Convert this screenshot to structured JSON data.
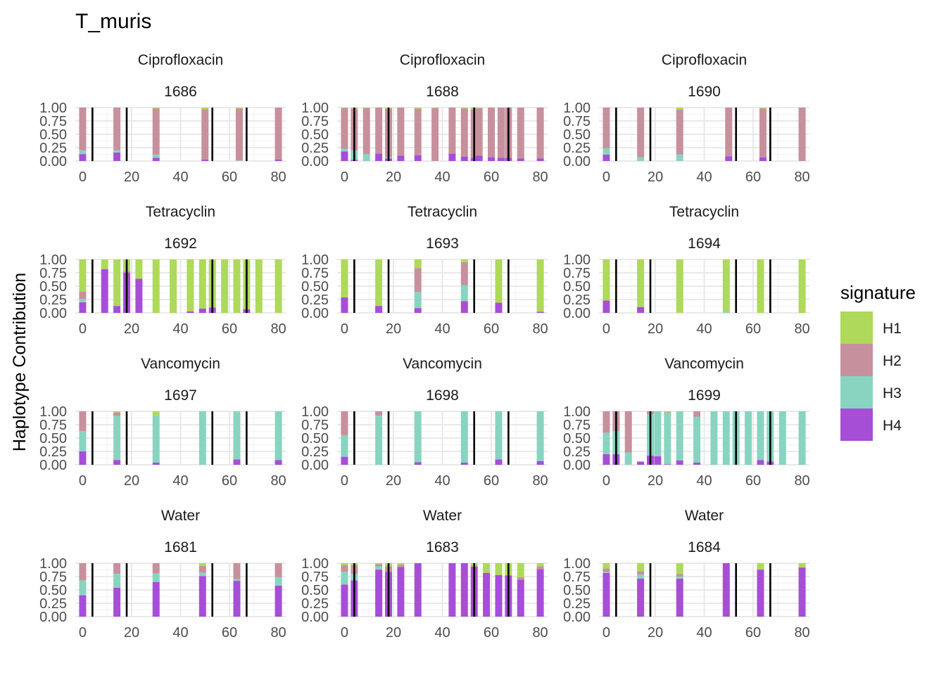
{
  "chart_data": {
    "type": "bar",
    "stacked": true,
    "title": "T_muris",
    "ylabel": "Haplotype Contribution",
    "xlabel": "",
    "xlim": [
      -3,
      83
    ],
    "ylim": [
      0,
      1
    ],
    "x_ticks": [
      0,
      20,
      40,
      60,
      80
    ],
    "y_ticks": [
      "0.00",
      "0.25",
      "0.50",
      "0.75",
      "1.00"
    ],
    "y_tick_values": [
      0,
      0.25,
      0.5,
      0.75,
      1
    ],
    "grid": true,
    "legend": {
      "title": "signature",
      "position": "right",
      "entries": [
        {
          "name": "H1",
          "color": "#AED95A"
        },
        {
          "name": "H2",
          "color": "#C7909D"
        },
        {
          "name": "H3",
          "color": "#88D4C0"
        },
        {
          "name": "H4",
          "color": "#A64FD6"
        }
      ]
    },
    "stack_order": [
      "H4",
      "H3",
      "H2",
      "H1"
    ],
    "treatment_lines_x": [
      4,
      18,
      53,
      67
    ],
    "panels": [
      {
        "treatment": "Ciprofloxacin",
        "mouse": "1686",
        "bars": [
          {
            "x": 0,
            "H4": 0.13,
            "H3": 0.07,
            "H2": 0.8,
            "H1": 0.0
          },
          {
            "x": 14,
            "H4": 0.16,
            "H3": 0.04,
            "H2": 0.8,
            "H1": 0.0
          },
          {
            "x": 30,
            "H4": 0.06,
            "H3": 0.06,
            "H2": 0.86,
            "H1": 0.02
          },
          {
            "x": 50,
            "H4": 0.03,
            "H3": 0.0,
            "H2": 0.94,
            "H1": 0.03
          },
          {
            "x": 64,
            "H4": 0.0,
            "H3": 0.01,
            "H2": 0.97,
            "H1": 0.02
          },
          {
            "x": 80,
            "H4": 0.03,
            "H3": 0.0,
            "H2": 0.97,
            "H1": 0.0
          }
        ]
      },
      {
        "treatment": "Ciprofloxacin",
        "mouse": "1688",
        "bars": [
          {
            "x": 0,
            "H4": 0.18,
            "H3": 0.05,
            "H2": 0.76,
            "H1": 0.01
          },
          {
            "x": 4,
            "H4": 0.02,
            "H3": 0.18,
            "H2": 0.78,
            "H1": 0.02
          },
          {
            "x": 9,
            "H4": 0.0,
            "H3": 0.13,
            "H2": 0.86,
            "H1": 0.01
          },
          {
            "x": 14,
            "H4": 0.14,
            "H3": 0.0,
            "H2": 0.86,
            "H1": 0.0
          },
          {
            "x": 18,
            "H4": 0.05,
            "H3": 0.02,
            "H2": 0.91,
            "H1": 0.02
          },
          {
            "x": 23,
            "H4": 0.1,
            "H3": 0.0,
            "H2": 0.9,
            "H1": 0.0
          },
          {
            "x": 30,
            "H4": 0.11,
            "H3": 0.0,
            "H2": 0.87,
            "H1": 0.02
          },
          {
            "x": 37,
            "H4": 0.0,
            "H3": 0.0,
            "H2": 0.99,
            "H1": 0.01
          },
          {
            "x": 44,
            "H4": 0.14,
            "H3": 0.0,
            "H2": 0.86,
            "H1": 0.0
          },
          {
            "x": 49,
            "H4": 0.08,
            "H3": 0.0,
            "H2": 0.9,
            "H1": 0.02
          },
          {
            "x": 53,
            "H4": 0.06,
            "H3": 0.0,
            "H2": 0.91,
            "H1": 0.03
          },
          {
            "x": 55,
            "H4": 0.1,
            "H3": 0.0,
            "H2": 0.89,
            "H1": 0.01
          },
          {
            "x": 60,
            "H4": 0.07,
            "H3": 0.0,
            "H2": 0.93,
            "H1": 0.0
          },
          {
            "x": 64,
            "H4": 0.06,
            "H3": 0.0,
            "H2": 0.94,
            "H1": 0.0
          },
          {
            "x": 67,
            "H4": 0.06,
            "H3": 0.0,
            "H2": 0.94,
            "H1": 0.0
          },
          {
            "x": 72,
            "H4": 0.05,
            "H3": 0.0,
            "H2": 0.95,
            "H1": 0.0
          },
          {
            "x": 80,
            "H4": 0.05,
            "H3": 0.0,
            "H2": 0.95,
            "H1": 0.0
          }
        ]
      },
      {
        "treatment": "Ciprofloxacin",
        "mouse": "1690",
        "bars": [
          {
            "x": 0,
            "H4": 0.12,
            "H3": 0.12,
            "H2": 0.76,
            "H1": 0.0
          },
          {
            "x": 14,
            "H4": 0.0,
            "H3": 0.07,
            "H2": 0.93,
            "H1": 0.0
          },
          {
            "x": 30,
            "H4": 0.0,
            "H3": 0.12,
            "H2": 0.84,
            "H1": 0.04
          },
          {
            "x": 50,
            "H4": 0.09,
            "H3": 0.0,
            "H2": 0.91,
            "H1": 0.0
          },
          {
            "x": 64,
            "H4": 0.07,
            "H3": 0.0,
            "H2": 0.91,
            "H1": 0.02
          },
          {
            "x": 80,
            "H4": 0.0,
            "H3": 0.0,
            "H2": 1.0,
            "H1": 0.0
          }
        ]
      },
      {
        "treatment": "Tetracyclin",
        "mouse": "1692",
        "bars": [
          {
            "x": 0,
            "H4": 0.2,
            "H3": 0.06,
            "H2": 0.14,
            "H1": 0.6
          },
          {
            "x": 9,
            "H4": 0.82,
            "H3": 0.0,
            "H2": 0.0,
            "H1": 0.18
          },
          {
            "x": 14,
            "H4": 0.13,
            "H3": 0.0,
            "H2": 0.0,
            "H1": 0.87
          },
          {
            "x": 18,
            "H4": 0.75,
            "H3": 0.0,
            "H2": 0.03,
            "H1": 0.22
          },
          {
            "x": 23,
            "H4": 0.64,
            "H3": 0.0,
            "H2": 0.0,
            "H1": 0.36
          },
          {
            "x": 30,
            "H4": 0.0,
            "H3": 0.0,
            "H2": 0.0,
            "H1": 1.0
          },
          {
            "x": 37,
            "H4": 0.0,
            "H3": 0.0,
            "H2": 0.0,
            "H1": 1.0
          },
          {
            "x": 44,
            "H4": 0.03,
            "H3": 0.0,
            "H2": 0.0,
            "H1": 0.97
          },
          {
            "x": 49,
            "H4": 0.08,
            "H3": 0.0,
            "H2": 0.0,
            "H1": 0.92
          },
          {
            "x": 53,
            "H4": 0.1,
            "H3": 0.0,
            "H2": 0.0,
            "H1": 0.9
          },
          {
            "x": 58,
            "H4": 0.0,
            "H3": 0.0,
            "H2": 0.0,
            "H1": 1.0
          },
          {
            "x": 63,
            "H4": 0.0,
            "H3": 0.0,
            "H2": 0.0,
            "H1": 1.0
          },
          {
            "x": 67,
            "H4": 0.07,
            "H3": 0.0,
            "H2": 0.0,
            "H1": 0.93
          },
          {
            "x": 72,
            "H4": 0.0,
            "H3": 0.0,
            "H2": 0.0,
            "H1": 1.0
          },
          {
            "x": 80,
            "H4": 0.0,
            "H3": 0.0,
            "H2": 0.0,
            "H1": 1.0
          }
        ]
      },
      {
        "treatment": "Tetracyclin",
        "mouse": "1693",
        "bars": [
          {
            "x": 0,
            "H4": 0.29,
            "H3": 0.0,
            "H2": 0.0,
            "H1": 0.71
          },
          {
            "x": 14,
            "H4": 0.13,
            "H3": 0.0,
            "H2": 0.0,
            "H1": 0.87
          },
          {
            "x": 30,
            "H4": 0.09,
            "H3": 0.3,
            "H2": 0.45,
            "H1": 0.16
          },
          {
            "x": 49,
            "H4": 0.22,
            "H3": 0.3,
            "H2": 0.43,
            "H1": 0.05
          },
          {
            "x": 63,
            "H4": 0.19,
            "H3": 0.0,
            "H2": 0.0,
            "H1": 0.81
          },
          {
            "x": 80,
            "H4": 0.02,
            "H3": 0.0,
            "H2": 0.0,
            "H1": 0.98
          }
        ]
      },
      {
        "treatment": "Tetracyclin",
        "mouse": "1694",
        "bars": [
          {
            "x": 0,
            "H4": 0.23,
            "H3": 0.0,
            "H2": 0.0,
            "H1": 0.77
          },
          {
            "x": 14,
            "H4": 0.11,
            "H3": 0.0,
            "H2": 0.0,
            "H1": 0.89
          },
          {
            "x": 30,
            "H4": 0.0,
            "H3": 0.0,
            "H2": 0.0,
            "H1": 1.0
          },
          {
            "x": 49,
            "H4": 0.0,
            "H3": 0.02,
            "H2": 0.0,
            "H1": 0.98
          },
          {
            "x": 63,
            "H4": 0.0,
            "H3": 0.0,
            "H2": 0.0,
            "H1": 1.0
          },
          {
            "x": 80,
            "H4": 0.0,
            "H3": 0.0,
            "H2": 0.0,
            "H1": 1.0
          }
        ]
      },
      {
        "treatment": "Vancomycin",
        "mouse": "1697",
        "bars": [
          {
            "x": 0,
            "H4": 0.25,
            "H3": 0.38,
            "H2": 0.37,
            "H1": 0.0
          },
          {
            "x": 14,
            "H4": 0.09,
            "H3": 0.82,
            "H2": 0.07,
            "H1": 0.02
          },
          {
            "x": 30,
            "H4": 0.04,
            "H3": 0.89,
            "H2": 0.0,
            "H1": 0.07
          },
          {
            "x": 49,
            "H4": 0.0,
            "H3": 1.0,
            "H2": 0.0,
            "H1": 0.0
          },
          {
            "x": 63,
            "H4": 0.1,
            "H3": 0.9,
            "H2": 0.0,
            "H1": 0.0
          },
          {
            "x": 80,
            "H4": 0.09,
            "H3": 0.91,
            "H2": 0.0,
            "H1": 0.0
          }
        ]
      },
      {
        "treatment": "Vancomycin",
        "mouse": "1698",
        "bars": [
          {
            "x": 0,
            "H4": 0.15,
            "H3": 0.4,
            "H2": 0.45,
            "H1": 0.0
          },
          {
            "x": 14,
            "H4": 0.0,
            "H3": 0.92,
            "H2": 0.08,
            "H1": 0.0
          },
          {
            "x": 30,
            "H4": 0.05,
            "H3": 0.95,
            "H2": 0.0,
            "H1": 0.0
          },
          {
            "x": 49,
            "H4": 0.04,
            "H3": 0.96,
            "H2": 0.0,
            "H1": 0.0
          },
          {
            "x": 63,
            "H4": 0.1,
            "H3": 0.9,
            "H2": 0.0,
            "H1": 0.0
          },
          {
            "x": 80,
            "H4": 0.07,
            "H3": 0.93,
            "H2": 0.0,
            "H1": 0.0
          }
        ]
      },
      {
        "treatment": "Vancomycin",
        "mouse": "1699",
        "bars": [
          {
            "x": 0,
            "H4": 0.2,
            "H3": 0.4,
            "H2": 0.4,
            "H1": 0.0
          },
          {
            "x": 4,
            "H4": 0.2,
            "H3": 0.43,
            "H2": 0.37,
            "H1": 0.0
          },
          {
            "x": 9,
            "H4": 0.0,
            "H3": 0.23,
            "H2": 0.77,
            "H1": 0.0
          },
          {
            "x": 14,
            "H4": 0.06,
            "H3": 0.0,
            "H2": 0.0,
            "H1": 0.0
          },
          {
            "x": 18,
            "H4": 0.17,
            "H3": 0.78,
            "H2": 0.05,
            "H1": 0.0
          },
          {
            "x": 21,
            "H4": 0.16,
            "H3": 0.84,
            "H2": 0.0,
            "H1": 0.0
          },
          {
            "x": 25,
            "H4": 0.01,
            "H3": 0.96,
            "H2": 0.01,
            "H1": 0.02
          },
          {
            "x": 30,
            "H4": 0.08,
            "H3": 0.92,
            "H2": 0.0,
            "H1": 0.0
          },
          {
            "x": 37,
            "H4": 0.04,
            "H3": 0.86,
            "H2": 0.1,
            "H1": 0.0
          },
          {
            "x": 44,
            "H4": 0.0,
            "H3": 1.0,
            "H2": 0.0,
            "H1": 0.0
          },
          {
            "x": 49,
            "H4": 0.0,
            "H3": 1.0,
            "H2": 0.0,
            "H1": 0.0
          },
          {
            "x": 53,
            "H4": 0.0,
            "H3": 1.0,
            "H2": 0.0,
            "H1": 0.0
          },
          {
            "x": 58,
            "H4": 0.0,
            "H3": 1.0,
            "H2": 0.0,
            "H1": 0.0
          },
          {
            "x": 63,
            "H4": 0.09,
            "H3": 0.91,
            "H2": 0.0,
            "H1": 0.0
          },
          {
            "x": 67,
            "H4": 0.06,
            "H3": 0.94,
            "H2": 0.0,
            "H1": 0.0
          },
          {
            "x": 72,
            "H4": 0.0,
            "H3": 1.0,
            "H2": 0.0,
            "H1": 0.0
          },
          {
            "x": 80,
            "H4": 0.0,
            "H3": 1.0,
            "H2": 0.0,
            "H1": 0.0
          }
        ]
      },
      {
        "treatment": "Water",
        "mouse": "1681",
        "bars": [
          {
            "x": 0,
            "H4": 0.4,
            "H3": 0.28,
            "H2": 0.32,
            "H1": 0.0
          },
          {
            "x": 14,
            "H4": 0.54,
            "H3": 0.26,
            "H2": 0.2,
            "H1": 0.0
          },
          {
            "x": 30,
            "H4": 0.65,
            "H3": 0.16,
            "H2": 0.19,
            "H1": 0.0
          },
          {
            "x": 49,
            "H4": 0.76,
            "H3": 0.06,
            "H2": 0.13,
            "H1": 0.05
          },
          {
            "x": 63,
            "H4": 0.67,
            "H3": 0.03,
            "H2": 0.3,
            "H1": 0.0
          },
          {
            "x": 80,
            "H4": 0.58,
            "H3": 0.16,
            "H2": 0.26,
            "H1": 0.0
          }
        ]
      },
      {
        "treatment": "Water",
        "mouse": "1683",
        "bars": [
          {
            "x": 0,
            "H4": 0.6,
            "H3": 0.24,
            "H2": 0.12,
            "H1": 0.04
          },
          {
            "x": 4,
            "H4": 0.68,
            "H3": 0.12,
            "H2": 0.17,
            "H1": 0.03
          },
          {
            "x": 14,
            "H4": 0.88,
            "H3": 0.06,
            "H2": 0.04,
            "H1": 0.02
          },
          {
            "x": 18,
            "H4": 0.84,
            "H3": 0.0,
            "H2": 0.1,
            "H1": 0.06
          },
          {
            "x": 23,
            "H4": 0.93,
            "H3": 0.0,
            "H2": 0.04,
            "H1": 0.03
          },
          {
            "x": 30,
            "H4": 1.0,
            "H3": 0.0,
            "H2": 0.0,
            "H1": 0.0
          },
          {
            "x": 44,
            "H4": 1.0,
            "H3": 0.0,
            "H2": 0.0,
            "H1": 0.0
          },
          {
            "x": 49,
            "H4": 1.0,
            "H3": 0.0,
            "H2": 0.0,
            "H1": 0.0
          },
          {
            "x": 53,
            "H4": 0.94,
            "H3": 0.0,
            "H2": 0.0,
            "H1": 0.06
          },
          {
            "x": 58,
            "H4": 0.82,
            "H3": 0.0,
            "H2": 0.0,
            "H1": 0.18
          },
          {
            "x": 63,
            "H4": 0.78,
            "H3": 0.0,
            "H2": 0.0,
            "H1": 0.22
          },
          {
            "x": 67,
            "H4": 0.77,
            "H3": 0.0,
            "H2": 0.0,
            "H1": 0.23
          },
          {
            "x": 72,
            "H4": 0.69,
            "H3": 0.0,
            "H2": 0.05,
            "H1": 0.26
          },
          {
            "x": 80,
            "H4": 0.89,
            "H3": 0.0,
            "H2": 0.05,
            "H1": 0.06
          }
        ]
      },
      {
        "treatment": "Water",
        "mouse": "1684",
        "bars": [
          {
            "x": 0,
            "H4": 0.82,
            "H3": 0.02,
            "H2": 0.06,
            "H1": 0.1
          },
          {
            "x": 14,
            "H4": 0.71,
            "H3": 0.08,
            "H2": 0.06,
            "H1": 0.15
          },
          {
            "x": 30,
            "H4": 0.71,
            "H3": 0.04,
            "H2": 0.05,
            "H1": 0.2
          },
          {
            "x": 49,
            "H4": 1.0,
            "H3": 0.0,
            "H2": 0.0,
            "H1": 0.0
          },
          {
            "x": 63,
            "H4": 0.88,
            "H3": 0.0,
            "H2": 0.0,
            "H1": 0.12
          },
          {
            "x": 80,
            "H4": 0.92,
            "H3": 0.0,
            "H2": 0.0,
            "H1": 0.08
          }
        ]
      }
    ]
  }
}
